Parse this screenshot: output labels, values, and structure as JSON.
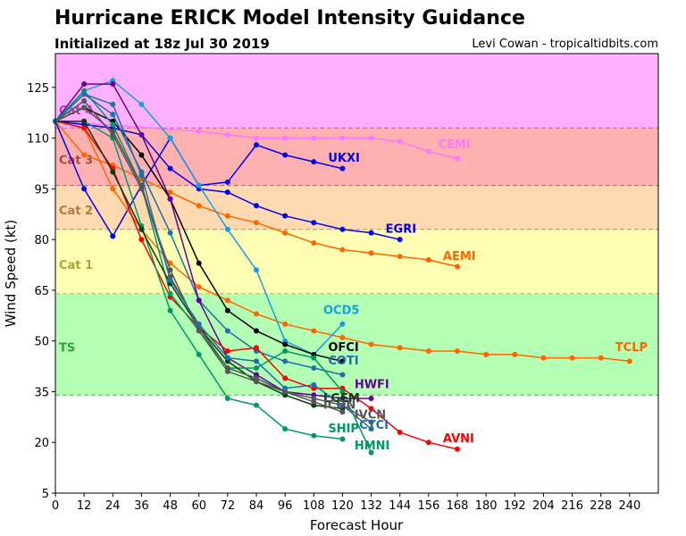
{
  "header": {
    "title": "Hurricane ERICK Model Intensity Guidance",
    "subtitle": "Initialized at 18z Jul 30 2019",
    "credit": "Levi Cowan - tropicaltidbits.com"
  },
  "chart_data": {
    "type": "line",
    "title": "Hurricane ERICK Model Intensity Guidance",
    "subtitle": "Initialized at 18z Jul 30 2019",
    "xlabel": "Forecast Hour",
    "ylabel": "Wind Speed (kt)",
    "xlim": [
      0,
      252
    ],
    "ylim": [
      5,
      135
    ],
    "xticks": [
      0,
      12,
      24,
      36,
      48,
      60,
      72,
      84,
      96,
      108,
      120,
      132,
      144,
      156,
      168,
      180,
      192,
      204,
      216,
      228,
      240
    ],
    "yticks": [
      5,
      20,
      35,
      50,
      65,
      80,
      95,
      110,
      125
    ],
    "grid": false,
    "categories_bands": [
      {
        "name": "TS",
        "min": 34,
        "max": 64,
        "fill": "#b3ffb3",
        "text_color": "#33a033"
      },
      {
        "name": "Cat 1",
        "min": 64,
        "max": 83,
        "fill": "#ffffb3",
        "text_color": "#a8a838"
      },
      {
        "name": "Cat 2",
        "min": 83,
        "max": 96,
        "fill": "#ffd9b0",
        "text_color": "#a87b48"
      },
      {
        "name": "Cat 3",
        "min": 96,
        "max": 113,
        "fill": "#ffb0b0",
        "text_color": "#a84848"
      },
      {
        "name": "Cat 4",
        "min": 113,
        "max": 135,
        "fill": "#ffb0ff",
        "text_color": "#a848a8"
      }
    ],
    "series": [
      {
        "name": "CEMI",
        "color": "#ff77ff",
        "x": [
          0,
          60,
          72,
          84,
          96,
          108,
          120,
          132,
          144,
          156,
          168
        ],
        "y": [
          115,
          112,
          111,
          110,
          110,
          110,
          110,
          110,
          109,
          106,
          104
        ]
      },
      {
        "name": "UKXI",
        "color": "#0000ee",
        "x": [
          0,
          12,
          24,
          36,
          48,
          60,
          72,
          84,
          96,
          108,
          120
        ],
        "y": [
          115,
          95,
          81,
          96,
          110,
          96,
          97,
          108,
          105,
          103,
          101
        ]
      },
      {
        "name": "EGRI",
        "color": "#0000ee",
        "x": [
          0,
          12,
          24,
          36,
          48,
          60,
          72,
          84,
          96,
          108,
          120,
          132,
          144
        ],
        "y": [
          115,
          114,
          113,
          111,
          101,
          95,
          94,
          90,
          87,
          85,
          83,
          82,
          80
        ]
      },
      {
        "name": "AEMI",
        "color": "#ff6600",
        "x": [
          0,
          12,
          24,
          36,
          48,
          60,
          72,
          84,
          96,
          108,
          120,
          132,
          144,
          156,
          168
        ],
        "y": [
          115,
          105,
          102,
          98,
          94,
          90,
          87,
          85,
          82,
          79,
          77,
          76,
          75,
          74,
          72
        ]
      },
      {
        "name": "TCLP",
        "color": "#ff6600",
        "x": [
          0,
          12,
          24,
          36,
          48,
          60,
          72,
          84,
          96,
          108,
          120,
          132,
          144,
          156,
          168,
          180,
          192,
          204,
          216,
          228,
          240
        ],
        "y": [
          115,
          113,
          95,
          83,
          73,
          66,
          62,
          58,
          55,
          53,
          51,
          49,
          48,
          47,
          47,
          46,
          46,
          45,
          45,
          45,
          44
        ]
      },
      {
        "name": "OCD5",
        "color": "#1a9ee0",
        "x": [
          0,
          12,
          24,
          36,
          48,
          60,
          72,
          84,
          96,
          108,
          120
        ],
        "y": [
          115,
          124,
          127,
          120,
          110,
          96,
          83,
          71,
          50,
          46,
          55
        ]
      },
      {
        "name": "OFCI",
        "color": "#000000",
        "x": [
          0,
          12,
          24,
          36,
          48,
          60,
          72,
          84,
          96,
          108,
          120
        ],
        "y": [
          115,
          119,
          115,
          105,
          92,
          73,
          59,
          53,
          49,
          46,
          44
        ]
      },
      {
        "name": "COTI",
        "color": "#1f6fa8",
        "x": [
          0,
          12,
          24,
          36,
          48,
          60,
          72,
          84,
          96,
          108,
          120
        ],
        "y": [
          115,
          123,
          117,
          100,
          82,
          62,
          53,
          47,
          44,
          42,
          40
        ]
      },
      {
        "name": "HWFI",
        "color": "#660099",
        "x": [
          0,
          12,
          24,
          36,
          48,
          60,
          72,
          84,
          96,
          108,
          120,
          132
        ],
        "y": [
          115,
          126,
          126,
          111,
          92,
          62,
          45,
          40,
          35,
          34,
          33,
          33
        ]
      },
      {
        "name": "AVNI",
        "color": "#ff0000",
        "x": [
          0,
          12,
          24,
          36,
          48,
          60,
          72,
          84,
          96,
          108,
          120,
          132,
          144,
          156,
          168
        ],
        "y": [
          115,
          113,
          101,
          80,
          63,
          54,
          47,
          48,
          39,
          36,
          36,
          30,
          23,
          20,
          18
        ]
      },
      {
        "name": "SHIP",
        "color": "#009966",
        "x": [
          0,
          12,
          24,
          36,
          48,
          60,
          72,
          84,
          96,
          108,
          120
        ],
        "y": [
          115,
          115,
          110,
          84,
          59,
          46,
          33,
          31,
          24,
          22,
          21
        ]
      },
      {
        "name": "HMNI",
        "color": "#009966",
        "x": [
          0,
          12,
          24,
          36,
          48,
          60,
          72,
          84,
          96,
          108,
          120,
          132
        ],
        "y": [
          115,
          124,
          114,
          96,
          64,
          53,
          42,
          42,
          47,
          45,
          35,
          17
        ]
      },
      {
        "name": "LGEM",
        "color": "#0a3d0a",
        "x": [
          0,
          12,
          24,
          36,
          48,
          60,
          72,
          84,
          96,
          108,
          120
        ],
        "y": [
          115,
          115,
          100,
          83,
          67,
          54,
          44,
          38,
          34,
          31,
          30
        ]
      },
      {
        "name": "IVCN",
        "color": "#555555",
        "x": [
          0,
          12,
          24,
          36,
          48,
          60,
          72,
          84,
          96,
          108,
          120,
          132
        ],
        "y": [
          115,
          121,
          111,
          95,
          71,
          53,
          41,
          38,
          35,
          33,
          31,
          26
        ]
      },
      {
        "name": "ICON",
        "color": "#555555",
        "x": [
          0,
          12,
          24,
          36,
          48,
          60,
          72,
          84,
          96,
          108,
          120
        ],
        "y": [
          115,
          119,
          112,
          96,
          69,
          54,
          42,
          39,
          35,
          32,
          29
        ]
      },
      {
        "name": "CTCI",
        "color": "#1f6fa8",
        "x": [
          0,
          12,
          24,
          36,
          48,
          60,
          72,
          84,
          96,
          108,
          120,
          132
        ],
        "y": [
          115,
          123,
          120,
          99,
          68,
          55,
          45,
          44,
          36,
          37,
          31,
          24
        ]
      }
    ],
    "annotations": [
      {
        "text": "CEMI",
        "x": 160,
        "y": 107,
        "color": "#ff77ff"
      },
      {
        "text": "UKXI",
        "x": 114,
        "y": 103,
        "color": "#0000ee"
      },
      {
        "text": "EGRI",
        "x": 138,
        "y": 82,
        "color": "#0000ee"
      },
      {
        "text": "AEMI",
        "x": 162,
        "y": 74,
        "color": "#ff6600"
      },
      {
        "text": "TCLP",
        "x": 234,
        "y": 47,
        "color": "#ff6600"
      },
      {
        "text": "OCD5",
        "x": 112,
        "y": 58,
        "color": "#1a9ee0"
      },
      {
        "text": "OFCI",
        "x": 114,
        "y": 47,
        "color": "#000000"
      },
      {
        "text": "COTI",
        "x": 114,
        "y": 43,
        "color": "#1f6fa8"
      },
      {
        "text": "HWFI",
        "x": 125,
        "y": 36,
        "color": "#660099"
      },
      {
        "text": "LGEM",
        "x": 112,
        "y": 32,
        "color": "#0a3d0a"
      },
      {
        "text": "ICON",
        "x": 112,
        "y": 30,
        "color": "#555555"
      },
      {
        "text": "IVCN",
        "x": 125,
        "y": 27,
        "color": "#555555"
      },
      {
        "text": "CTCI",
        "x": 127,
        "y": 24,
        "color": "#1f6fa8"
      },
      {
        "text": "AVNI",
        "x": 162,
        "y": 20,
        "color": "#ff0000"
      },
      {
        "text": "SHIP",
        "x": 114,
        "y": 23,
        "color": "#009966"
      },
      {
        "text": "HMNI",
        "x": 125,
        "y": 18,
        "color": "#009966"
      }
    ]
  }
}
